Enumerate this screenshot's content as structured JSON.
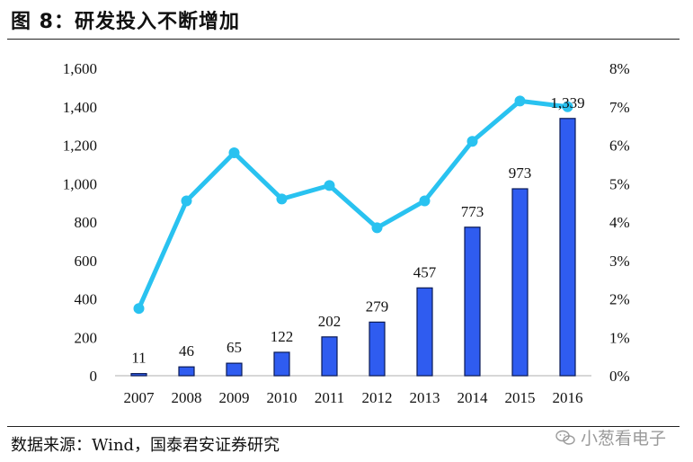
{
  "figure": {
    "title": "图 8：研发投入不断增加",
    "source": "数据来源：Wind，国泰君安证券研究",
    "watermark": "小葱看电子",
    "watermark_icon": "wechat-icon"
  },
  "chart_data": {
    "type": "bar",
    "categories": [
      "2007",
      "2008",
      "2009",
      "2010",
      "2011",
      "2012",
      "2013",
      "2014",
      "2015",
      "2016"
    ],
    "series": [
      {
        "type": "bar",
        "axis": "left",
        "values": [
          11,
          46,
          65,
          122,
          202,
          279,
          457,
          773,
          973,
          1339
        ],
        "data_labels": [
          "11",
          "46",
          "65",
          "122",
          "202",
          "279",
          "457",
          "773",
          "973",
          "1,339"
        ],
        "color": "#2f5cf0"
      },
      {
        "type": "line",
        "axis": "right",
        "values": [
          1.75,
          4.55,
          5.8,
          4.6,
          4.95,
          3.85,
          4.55,
          6.1,
          7.15,
          7.0
        ],
        "color": "#29c2f0"
      }
    ],
    "y_left": {
      "min": 0,
      "max": 1600,
      "ticks": [
        "0",
        "200",
        "400",
        "600",
        "800",
        "1,000",
        "1,200",
        "1,400",
        "1,600"
      ]
    },
    "y_right": {
      "min": 0,
      "max": 8,
      "ticks": [
        "0%",
        "1%",
        "2%",
        "3%",
        "4%",
        "5%",
        "6%",
        "7%",
        "8%"
      ]
    },
    "grid": false,
    "legend": "none"
  }
}
